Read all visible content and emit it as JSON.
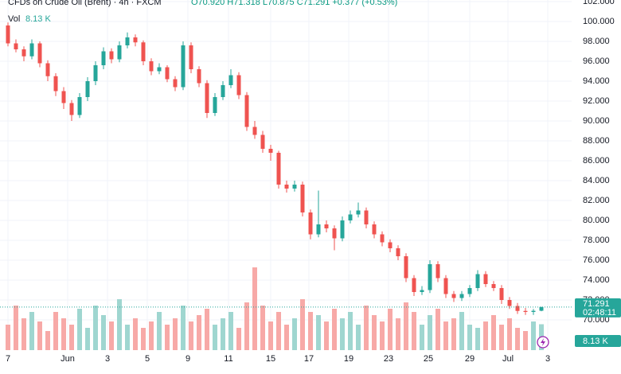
{
  "chart_data": {
    "type": "candlestick",
    "title": "CFDs on Crude Oil (Brent) · 4h · FXCM",
    "ohlc_header": "O70.920 H71.318 L70.875 C71.291 +0.377 (+0.53%)",
    "volume_title": "Vol",
    "last_volume_label": "8.13 K",
    "countdown": "02:48:11",
    "up_color": "#26a69a",
    "down_color": "#ef5350",
    "volume_up_color": "#9fd6d0",
    "volume_down_color": "#f7a9a7",
    "grid": true,
    "xlim": [
      -1,
      70.8
    ],
    "xticks": [
      {
        "value": 0,
        "label": "7"
      },
      {
        "value": 7.5,
        "label": "Jun"
      },
      {
        "value": 12.5,
        "label": "3"
      },
      {
        "value": 17.5,
        "label": "5"
      },
      {
        "value": 22.6,
        "label": "9"
      },
      {
        "value": 27.7,
        "label": "11"
      },
      {
        "value": 33,
        "label": "15"
      },
      {
        "value": 37.8,
        "label": "17"
      },
      {
        "value": 42.8,
        "label": "19"
      },
      {
        "value": 47.8,
        "label": "23"
      },
      {
        "value": 52.8,
        "label": "25"
      },
      {
        "value": 58,
        "label": "29"
      },
      {
        "value": 62.8,
        "label": "Jul"
      },
      {
        "value": 67.8,
        "label": "3"
      }
    ],
    "ylim": [
      66.96,
      102.16
    ],
    "yticks": [
      {
        "value": 70,
        "label": "70.000"
      },
      {
        "value": 72,
        "label": "72.000"
      },
      {
        "value": 74,
        "label": "74.000"
      },
      {
        "value": 76,
        "label": "76.000"
      },
      {
        "value": 78,
        "label": "78.000"
      },
      {
        "value": 80,
        "label": "80.000"
      },
      {
        "value": 82,
        "label": "82.000"
      },
      {
        "value": 84,
        "label": "84.000"
      },
      {
        "value": 86,
        "label": "86.000"
      },
      {
        "value": 88,
        "label": "88.000"
      },
      {
        "value": 90,
        "label": "90.000"
      },
      {
        "value": 92,
        "label": "92.000"
      },
      {
        "value": 94,
        "label": "94.000"
      },
      {
        "value": 96,
        "label": "96.000"
      },
      {
        "value": 98,
        "label": "98.000"
      },
      {
        "value": 100,
        "label": "100.000"
      },
      {
        "value": 102,
        "label": "102.000"
      }
    ],
    "volume_lim": [
      0,
      30
    ],
    "open": [
      99.6,
      97.8,
      97.2,
      96.5,
      97.8,
      95.8,
      94.5,
      93.0,
      91.8,
      90.6,
      92.4,
      94.0,
      95.6,
      97.0,
      96.2,
      97.6,
      98.4,
      97.9,
      96.0,
      95.0,
      95.4,
      94.2,
      93.4,
      97.6,
      95.2,
      93.8,
      90.8,
      92.4,
      93.6,
      94.6,
      92.6,
      89.4,
      88.6,
      87.2,
      86.8,
      83.6,
      83.2,
      83.6,
      80.8,
      78.6,
      79.6,
      79.2,
      78.2,
      80.0,
      80.6,
      81.0,
      79.6,
      78.6,
      77.8,
      77.2,
      76.4,
      74.2,
      72.8,
      73.0,
      75.6,
      74.2,
      72.6,
      72.2,
      72.6,
      73.2,
      74.6,
      73.6,
      73.2,
      72.0,
      71.4,
      70.9,
      70.8,
      70.92
    ],
    "high": [
      99.9,
      98.2,
      97.5,
      98.2,
      98.0,
      96.1,
      94.8,
      93.4,
      92.1,
      92.8,
      94.4,
      96.0,
      97.4,
      97.3,
      98.0,
      98.9,
      98.7,
      98.1,
      96.3,
      95.8,
      95.6,
      94.5,
      98.0,
      97.9,
      95.5,
      94.1,
      92.8,
      94.0,
      95.2,
      94.9,
      92.9,
      90.0,
      89.0,
      87.6,
      87.0,
      84.0,
      84.0,
      83.9,
      81.1,
      83.0,
      80.0,
      79.5,
      80.4,
      81.0,
      81.8,
      81.3,
      79.9,
      78.9,
      78.1,
      77.5,
      76.7,
      74.5,
      73.4,
      76.0,
      75.9,
      74.5,
      72.9,
      72.9,
      73.5,
      75.0,
      74.9,
      73.9,
      73.5,
      72.3,
      71.7,
      71.2,
      71.1,
      71.318
    ],
    "low": [
      97.5,
      96.9,
      96.0,
      96.2,
      95.4,
      94.0,
      92.5,
      91.2,
      90.0,
      90.3,
      92.0,
      93.6,
      95.2,
      95.8,
      95.9,
      97.3,
      97.5,
      95.6,
      94.6,
      94.7,
      93.9,
      93.0,
      93.1,
      94.8,
      93.4,
      90.3,
      90.5,
      92.1,
      93.3,
      92.2,
      89.0,
      88.2,
      86.8,
      86.0,
      83.2,
      82.8,
      82.9,
      80.4,
      78.1,
      78.3,
      78.8,
      77.0,
      77.9,
      79.7,
      80.3,
      79.2,
      78.2,
      77.4,
      76.8,
      76.0,
      73.8,
      72.4,
      72.5,
      72.7,
      73.8,
      72.2,
      71.8,
      71.9,
      72.3,
      72.9,
      73.3,
      72.9,
      71.6,
      71.1,
      70.6,
      70.5,
      70.5,
      70.875
    ],
    "close": [
      97.8,
      97.2,
      96.5,
      97.8,
      95.8,
      94.5,
      93.0,
      91.8,
      90.6,
      92.4,
      94.0,
      95.6,
      97.0,
      96.2,
      97.6,
      98.4,
      97.9,
      96.0,
      95.0,
      95.4,
      94.2,
      93.4,
      97.6,
      95.2,
      93.8,
      90.8,
      92.4,
      93.6,
      94.6,
      92.6,
      89.4,
      88.6,
      87.2,
      86.8,
      83.6,
      83.2,
      83.6,
      80.8,
      78.6,
      79.6,
      79.2,
      78.2,
      80.0,
      80.6,
      81.0,
      79.6,
      78.6,
      77.8,
      77.2,
      76.4,
      74.2,
      72.8,
      73.0,
      75.6,
      74.2,
      72.6,
      72.2,
      72.6,
      73.2,
      74.6,
      73.6,
      73.2,
      72.0,
      71.4,
      70.9,
      70.8,
      70.914,
      71.291
    ],
    "volume": [
      8,
      14,
      10,
      12,
      9,
      6,
      12,
      10,
      8,
      13,
      7,
      14,
      11,
      9,
      16,
      8,
      10,
      7,
      9,
      12,
      8,
      10,
      14,
      9,
      11,
      13,
      8,
      10,
      12,
      7,
      15,
      26,
      14,
      9,
      12,
      8,
      10,
      16,
      12,
      11,
      9,
      13,
      10,
      12,
      8,
      14,
      11,
      9,
      13,
      10,
      15,
      12,
      8,
      11,
      13,
      9,
      10,
      12,
      8,
      7,
      9,
      11,
      8,
      10,
      7,
      6,
      9,
      8.13
    ]
  }
}
